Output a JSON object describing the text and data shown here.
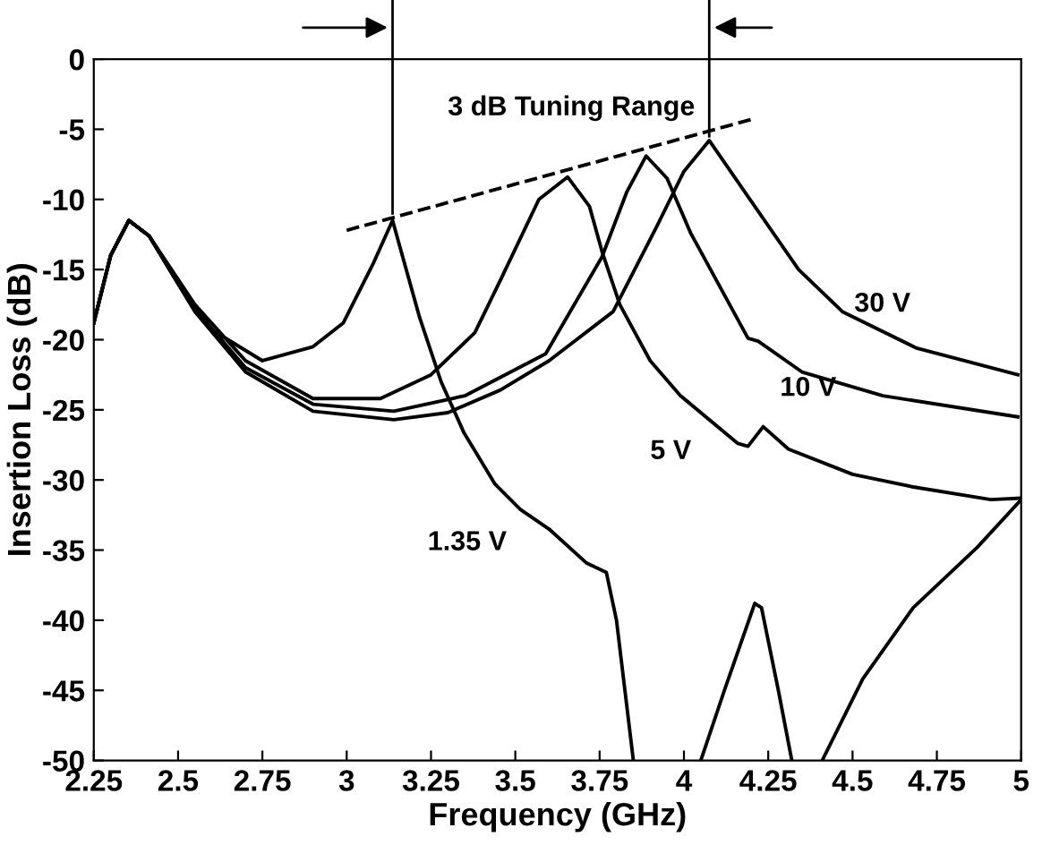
{
  "chart_data": {
    "type": "line",
    "xlabel": "Frequency (GHz)",
    "ylabel": "Insertion Loss (dB)",
    "xlim": [
      2.25,
      5
    ],
    "xticks": [
      2.25,
      2.5,
      2.75,
      3,
      3.25,
      3.5,
      3.75,
      4,
      4.25,
      4.5,
      4.75,
      5
    ],
    "ylim": [
      -50,
      0
    ],
    "yticks": [
      0,
      -5,
      -10,
      -15,
      -20,
      -25,
      -30,
      -35,
      -40,
      -45,
      -50
    ],
    "grid": false,
    "legend": false,
    "marker": "none",
    "line_style": "solid",
    "annotations": [
      "3 dB Tuning Range"
    ],
    "ref_lines": [
      {
        "axis": "x",
        "value": 3.136,
        "label": null,
        "color": "#000000"
      },
      {
        "axis": "x",
        "value": 4.075,
        "label": null,
        "color": "#000000"
      }
    ],
    "series": [
      {
        "name": "1.35 V",
        "color": "#000000",
        "x": [
          2.25,
          2.3,
          2.354,
          2.414,
          2.5,
          2.6,
          2.75,
          2.9,
          2.99,
          3.08,
          3.136,
          3.216,
          3.28,
          3.347,
          3.44,
          3.515,
          3.6,
          3.71,
          3.77,
          3.8,
          3.85,
          3.95,
          4.05,
          4.12,
          4.21,
          4.23,
          4.28,
          4.32,
          4.37,
          4.41,
          4.53,
          4.68,
          4.87,
          5.0
        ],
        "values": [
          -18.8,
          -14,
          -11.5,
          -12.6,
          -16,
          -19.3,
          -21.5,
          -20.5,
          -18.8,
          -14.5,
          -11.5,
          -18.4,
          -23,
          -26.6,
          -30.3,
          -32.1,
          -33.5,
          -35.9,
          -36.6,
          -40,
          -50,
          null,
          -50,
          -45,
          -38.8,
          -39.1,
          -45,
          -50,
          null,
          -50,
          -44.2,
          -39.1,
          -34.8,
          -31.4
        ]
      },
      {
        "name": "5 V",
        "color": "#000000",
        "x": [
          2.25,
          2.3,
          2.354,
          2.414,
          2.55,
          2.7,
          2.9,
          3.1,
          3.25,
          3.38,
          3.455,
          3.57,
          3.655,
          3.72,
          3.757,
          3.81,
          3.9,
          3.99,
          4.16,
          4.19,
          4.235,
          4.31,
          4.5,
          4.68,
          4.91,
          5.0
        ],
        "values": [
          -18.8,
          -14,
          -11.5,
          -12.6,
          -17.5,
          -21.5,
          -24.2,
          -24.2,
          -22.5,
          -19.5,
          -15.8,
          -10,
          -8.4,
          -10.5,
          -13.7,
          -17.5,
          -21.5,
          -24,
          -27.4,
          -27.6,
          -26.2,
          -27.8,
          -29.6,
          -30.5,
          -31.4,
          -31.3
        ]
      },
      {
        "name": "10 V",
        "color": "#000000",
        "x": [
          2.25,
          2.3,
          2.354,
          2.414,
          2.55,
          2.7,
          2.9,
          3.14,
          3.35,
          3.59,
          3.757,
          3.83,
          3.888,
          3.95,
          4.02,
          4.19,
          4.22,
          4.35,
          4.59,
          4.99
        ],
        "values": [
          -18.8,
          -14,
          -11.5,
          -12.6,
          -17.8,
          -22,
          -24.6,
          -25.1,
          -24,
          -21,
          -14.1,
          -9.5,
          -6.9,
          -8.5,
          -12.4,
          -19.9,
          -20.1,
          -22.3,
          -24,
          -25.5
        ]
      },
      {
        "name": "30 V",
        "color": "#000000",
        "x": [
          2.25,
          2.3,
          2.354,
          2.414,
          2.55,
          2.7,
          2.9,
          3.14,
          3.3,
          3.455,
          3.6,
          3.79,
          3.92,
          4.0,
          4.075,
          4.19,
          4.34,
          4.47,
          4.69,
          4.99
        ],
        "values": [
          -18.8,
          -14,
          -11.5,
          -12.6,
          -18,
          -22.3,
          -25.1,
          -25.7,
          -25.2,
          -23.6,
          -21.5,
          -18,
          -11.9,
          -8,
          -5.8,
          -9.8,
          -15,
          -18,
          -20.6,
          -22.5
        ]
      },
      {
        "color": "#000000",
        "line_style": "dashed",
        "x": [
          3.0,
          4.2
        ],
        "values": [
          -12.2,
          -4.3
        ]
      }
    ]
  }
}
